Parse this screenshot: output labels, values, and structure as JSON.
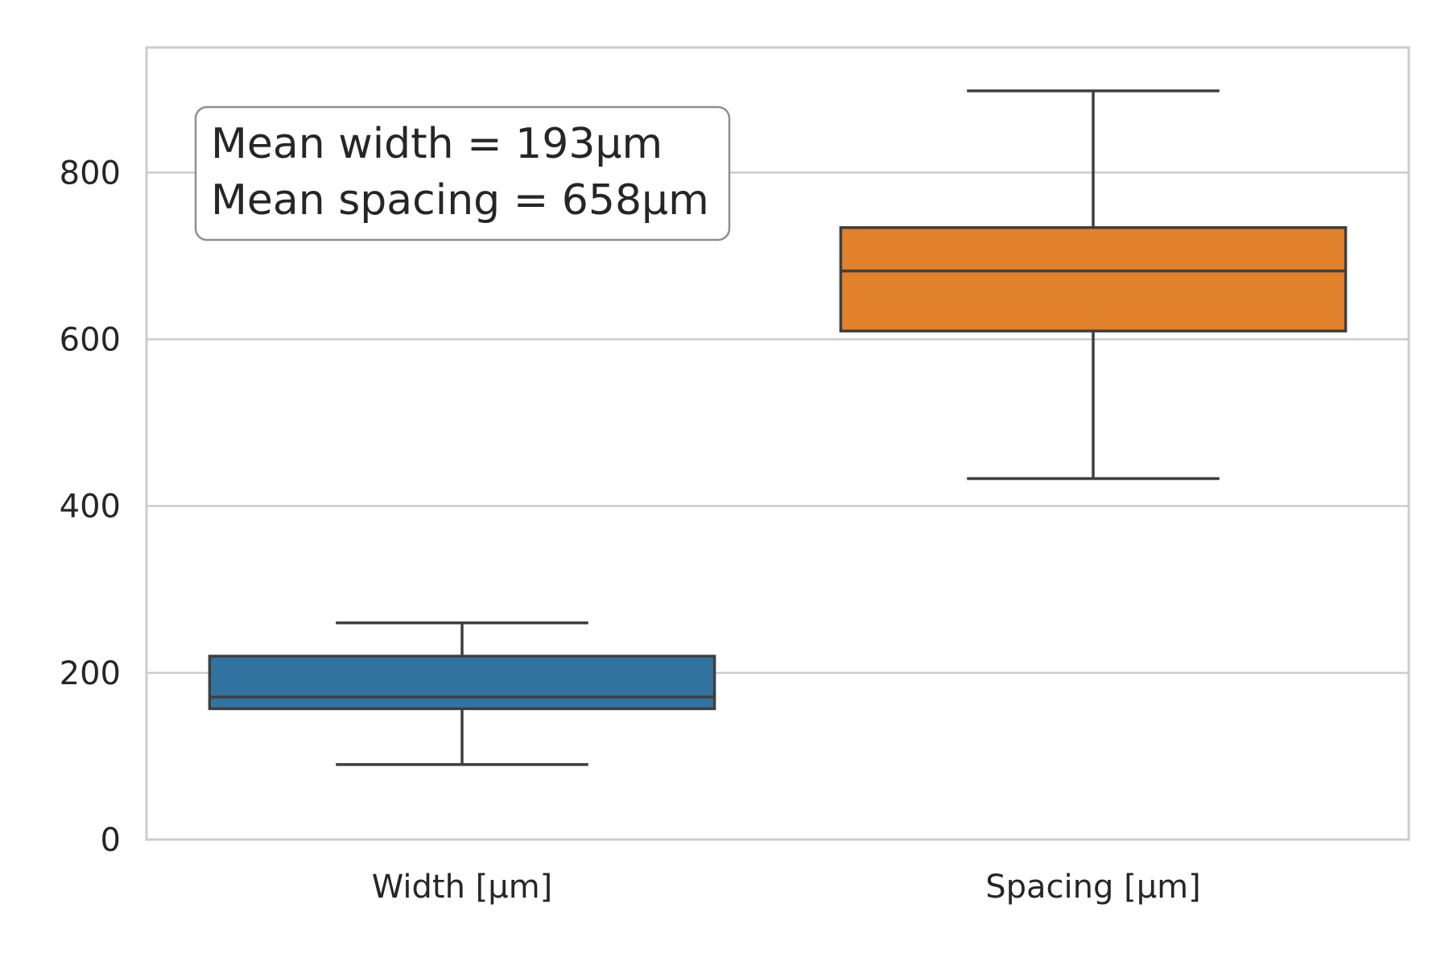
{
  "chart_data": {
    "type": "box",
    "categories": [
      "Width [μm]",
      "Spacing [μm]"
    ],
    "boxes": [
      {
        "category": "Width [μm]",
        "whisker_low": 90,
        "q1": 157,
        "median": 171,
        "q3": 220,
        "whisker_high": 260,
        "color": "#3274a1"
      },
      {
        "category": "Spacing [μm]",
        "whisker_low": 433,
        "q1": 610,
        "median": 682,
        "q3": 734,
        "whisker_high": 898,
        "color": "#e1812c"
      }
    ],
    "ylim": [
      0,
      950
    ],
    "yticks": [
      0,
      200,
      400,
      600,
      800
    ],
    "ytick_labels": [
      "0",
      "200",
      "400",
      "600",
      "800"
    ],
    "grid": true,
    "annotation": {
      "lines": [
        "Mean width = 193μm",
        "Mean spacing = 658μm"
      ],
      "placement": "top-left"
    },
    "colors": {
      "grid": "#cccccc",
      "spine": "#cccccc",
      "box_edge": "#3f3f3f",
      "text": "#262626"
    }
  }
}
